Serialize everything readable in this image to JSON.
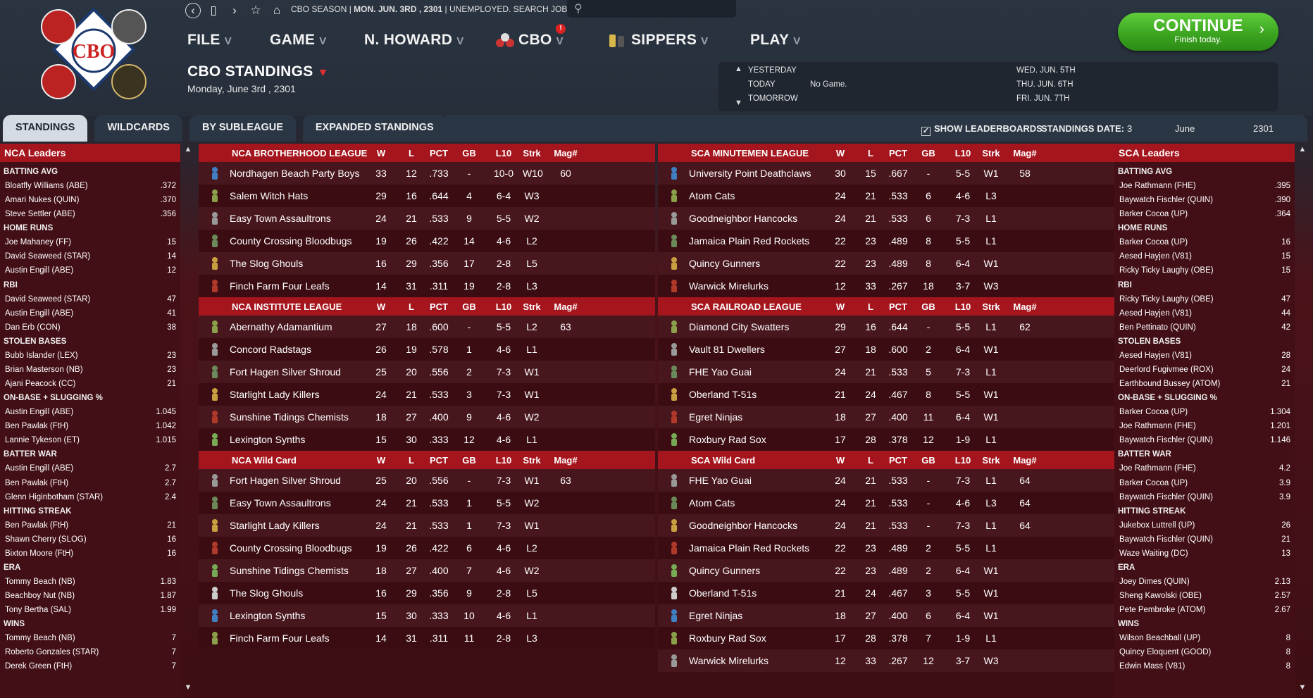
{
  "nav": {
    "status_season": "CBO SEASON",
    "status_date": "MON. JUN. 3RD , 2301",
    "status_job": "UNEMPLOYED. SEARCH JOBS...",
    "menus": [
      {
        "label": "FILE"
      },
      {
        "label": "GAME"
      },
      {
        "label": "N. HOWARD"
      },
      {
        "label": "CBO"
      },
      {
        "label": "SIPPERS"
      },
      {
        "label": "PLAY"
      }
    ],
    "cbo_badge": "!"
  },
  "page": {
    "title": "CBO STANDINGS",
    "date": "Monday, June 3rd , 2301"
  },
  "schedule": {
    "yesterday_label": "YESTERDAY",
    "today_label": "TODAY",
    "today_value": "No Game.",
    "tomorrow_label": "TOMORROW",
    "upcoming": [
      "WED. JUN. 5TH",
      "THU. JUN. 6TH",
      "FRI. JUN. 7TH"
    ]
  },
  "continue": {
    "label": "CONTINUE",
    "sub": "Finish today."
  },
  "tabs": [
    "STANDINGS",
    "WILDCARDS",
    "BY SUBLEAGUE",
    "EXPANDED STANDINGS"
  ],
  "options": {
    "show_leaderboards": "SHOW LEADERBOARDS",
    "standings_date_label": "STANDINGS DATE:",
    "day": "3",
    "month": "June",
    "year": "2301"
  },
  "columns": [
    "W",
    "L",
    "PCT",
    "GB",
    "L10",
    "Strk",
    "Mag#"
  ],
  "left_leaders": {
    "title": "NCA Leaders",
    "categories": [
      {
        "name": "BATTING AVG",
        "rows": [
          [
            "Bloatfly Williams (ABE)",
            ".372"
          ],
          [
            "Amari Nukes (QUIN)",
            ".370"
          ],
          [
            "Steve Settler (ABE)",
            ".356"
          ]
        ]
      },
      {
        "name": "HOME RUNS",
        "rows": [
          [
            "Joe Mahaney (FF)",
            "15"
          ],
          [
            "David Seaweed (STAR)",
            "14"
          ],
          [
            "Austin Engill (ABE)",
            "12"
          ]
        ]
      },
      {
        "name": "RBI",
        "rows": [
          [
            "David Seaweed (STAR)",
            "47"
          ],
          [
            "Austin Engill (ABE)",
            "41"
          ],
          [
            "Dan Erb (CON)",
            "38"
          ]
        ]
      },
      {
        "name": "STOLEN BASES",
        "rows": [
          [
            "Bubb Islander (LEX)",
            "23"
          ],
          [
            "Brian Masterson (NB)",
            "23"
          ],
          [
            "Ajani Peacock (CC)",
            "21"
          ]
        ]
      },
      {
        "name": "ON-BASE + SLUGGING %",
        "rows": [
          [
            "Austin Engill (ABE)",
            "1.045"
          ],
          [
            "Ben Pawlak (FtH)",
            "1.042"
          ],
          [
            "Lannie Tykeson (ET)",
            "1.015"
          ]
        ]
      },
      {
        "name": "BATTER WAR",
        "rows": [
          [
            "Austin Engill (ABE)",
            "2.7"
          ],
          [
            "Ben Pawlak (FtH)",
            "2.7"
          ],
          [
            "Glenn Higinbotham (STAR)",
            "2.4"
          ]
        ]
      },
      {
        "name": "HITTING STREAK",
        "rows": [
          [
            "Ben Pawlak (FtH)",
            "21"
          ],
          [
            "Shawn Cherry (SLOG)",
            "16"
          ],
          [
            "Bixton Moore (FtH)",
            "16"
          ]
        ]
      },
      {
        "name": "ERA",
        "rows": [
          [
            "Tommy Beach (NB)",
            "1.83"
          ],
          [
            "Beachboy Nut (NB)",
            "1.87"
          ],
          [
            "Tony Bertha (SAL)",
            "1.99"
          ]
        ]
      },
      {
        "name": "WINS",
        "rows": [
          [
            "Tommy Beach (NB)",
            "7"
          ],
          [
            "Roberto Gonzales (STAR)",
            "7"
          ],
          [
            "Derek Green (FtH)",
            "7"
          ]
        ]
      }
    ]
  },
  "right_leaders": {
    "title": "SCA Leaders",
    "categories": [
      {
        "name": "BATTING AVG",
        "rows": [
          [
            "Joe Rathmann (FHE)",
            ".395"
          ],
          [
            "Baywatch Fischler (QUIN)",
            ".390"
          ],
          [
            "Barker Cocoa (UP)",
            ".364"
          ]
        ]
      },
      {
        "name": "HOME RUNS",
        "rows": [
          [
            "Barker Cocoa (UP)",
            "16"
          ],
          [
            "Aesed Hayjen (V81)",
            "15"
          ],
          [
            "Ricky Ticky Laughy (OBE)",
            "15"
          ]
        ]
      },
      {
        "name": "RBI",
        "rows": [
          [
            "Ricky Ticky Laughy (OBE)",
            "47"
          ],
          [
            "Aesed Hayjen (V81)",
            "44"
          ],
          [
            "Ben Pettinato (QUIN)",
            "42"
          ]
        ]
      },
      {
        "name": "STOLEN BASES",
        "rows": [
          [
            "Aesed Hayjen (V81)",
            "28"
          ],
          [
            "Deerlord Fugivmee (ROX)",
            "24"
          ],
          [
            "Earthbound Bussey (ATOM)",
            "21"
          ]
        ]
      },
      {
        "name": "ON-BASE + SLUGGING %",
        "rows": [
          [
            "Barker Cocoa (UP)",
            "1.304"
          ],
          [
            "Joe Rathmann (FHE)",
            "1.201"
          ],
          [
            "Baywatch Fischler (QUIN)",
            "1.146"
          ]
        ]
      },
      {
        "name": "BATTER WAR",
        "rows": [
          [
            "Joe Rathmann (FHE)",
            "4.2"
          ],
          [
            "Barker Cocoa (UP)",
            "3.9"
          ],
          [
            "Baywatch Fischler (QUIN)",
            "3.9"
          ]
        ]
      },
      {
        "name": "HITTING STREAK",
        "rows": [
          [
            "Jukebox Luttrell (UP)",
            "26"
          ],
          [
            "Baywatch Fischler (QUIN)",
            "21"
          ],
          [
            "Waze Waiting (DC)",
            "13"
          ]
        ]
      },
      {
        "name": "ERA",
        "rows": [
          [
            "Joey Dimes (QUIN)",
            "2.13"
          ],
          [
            "Sheng Kawolski (OBE)",
            "2.57"
          ],
          [
            "Pete Pembroke (ATOM)",
            "2.67"
          ]
        ]
      },
      {
        "name": "WINS",
        "rows": [
          [
            "Wilson Beachball (UP)",
            "8"
          ],
          [
            "Quincy Eloquent (GOOD)",
            "8"
          ],
          [
            "Edwin Mass (V81)",
            "8"
          ]
        ]
      }
    ]
  },
  "nca_tables": [
    {
      "title": "NCA BROTHERHOOD LEAGUE",
      "teams": [
        [
          "Nordhagen Beach Party Boys",
          "33",
          "12",
          ".733",
          "-",
          "10-0",
          "W10",
          "60"
        ],
        [
          "Salem Witch Hats",
          "29",
          "16",
          ".644",
          "4",
          "6-4",
          "W3",
          ""
        ],
        [
          "Easy Town Assaultrons",
          "24",
          "21",
          ".533",
          "9",
          "5-5",
          "W2",
          ""
        ],
        [
          "County Crossing Bloodbugs",
          "19",
          "26",
          ".422",
          "14",
          "4-6",
          "L2",
          ""
        ],
        [
          "The Slog Ghouls",
          "16",
          "29",
          ".356",
          "17",
          "2-8",
          "L5",
          ""
        ],
        [
          "Finch Farm Four Leafs",
          "14",
          "31",
          ".311",
          "19",
          "2-8",
          "L3",
          ""
        ]
      ]
    },
    {
      "title": "NCA INSTITUTE LEAGUE",
      "teams": [
        [
          "Abernathy Adamantium",
          "27",
          "18",
          ".600",
          "-",
          "5-5",
          "L2",
          "63"
        ],
        [
          "Concord Radstags",
          "26",
          "19",
          ".578",
          "1",
          "4-6",
          "L1",
          ""
        ],
        [
          "Fort Hagen Silver Shroud",
          "25",
          "20",
          ".556",
          "2",
          "7-3",
          "W1",
          ""
        ],
        [
          "Starlight Lady Killers",
          "24",
          "21",
          ".533",
          "3",
          "7-3",
          "W1",
          ""
        ],
        [
          "Sunshine Tidings Chemists",
          "18",
          "27",
          ".400",
          "9",
          "4-6",
          "W2",
          ""
        ],
        [
          "Lexington Synths",
          "15",
          "30",
          ".333",
          "12",
          "4-6",
          "L1",
          ""
        ]
      ]
    },
    {
      "title": "NCA  Wild Card",
      "teams": [
        [
          "Fort Hagen Silver Shroud",
          "25",
          "20",
          ".556",
          "-",
          "7-3",
          "W1",
          "63"
        ],
        [
          "Easy Town Assaultrons",
          "24",
          "21",
          ".533",
          "1",
          "5-5",
          "W2",
          ""
        ],
        [
          "Starlight Lady Killers",
          "24",
          "21",
          ".533",
          "1",
          "7-3",
          "W1",
          ""
        ],
        [
          "County Crossing Bloodbugs",
          "19",
          "26",
          ".422",
          "6",
          "4-6",
          "L2",
          ""
        ],
        [
          "Sunshine Tidings Chemists",
          "18",
          "27",
          ".400",
          "7",
          "4-6",
          "W2",
          ""
        ],
        [
          "The Slog Ghouls",
          "16",
          "29",
          ".356",
          "9",
          "2-8",
          "L5",
          ""
        ],
        [
          "Lexington Synths",
          "15",
          "30",
          ".333",
          "10",
          "4-6",
          "L1",
          ""
        ],
        [
          "Finch Farm Four Leafs",
          "14",
          "31",
          ".311",
          "11",
          "2-8",
          "L3",
          ""
        ]
      ]
    }
  ],
  "sca_tables": [
    {
      "title": "SCA MINUTEMEN LEAGUE",
      "teams": [
        [
          "University Point Deathclaws",
          "30",
          "15",
          ".667",
          "-",
          "5-5",
          "W1",
          "58"
        ],
        [
          "Atom Cats",
          "24",
          "21",
          ".533",
          "6",
          "4-6",
          "L3",
          ""
        ],
        [
          "Goodneighbor Hancocks",
          "24",
          "21",
          ".533",
          "6",
          "7-3",
          "L1",
          ""
        ],
        [
          "Jamaica Plain Red Rockets",
          "22",
          "23",
          ".489",
          "8",
          "5-5",
          "L1",
          ""
        ],
        [
          "Quincy Gunners",
          "22",
          "23",
          ".489",
          "8",
          "6-4",
          "W1",
          ""
        ],
        [
          "Warwick Mirelurks",
          "12",
          "33",
          ".267",
          "18",
          "3-7",
          "W3",
          ""
        ]
      ]
    },
    {
      "title": "SCA RAILROAD LEAGUE",
      "teams": [
        [
          "Diamond City Swatters",
          "29",
          "16",
          ".644",
          "-",
          "5-5",
          "L1",
          "62"
        ],
        [
          "Vault 81 Dwellers",
          "27",
          "18",
          ".600",
          "2",
          "6-4",
          "W1",
          ""
        ],
        [
          "FHE Yao Guai",
          "24",
          "21",
          ".533",
          "5",
          "7-3",
          "L1",
          ""
        ],
        [
          "Oberland T-51s",
          "21",
          "24",
          ".467",
          "8",
          "5-5",
          "W1",
          ""
        ],
        [
          "Egret Ninjas",
          "18",
          "27",
          ".400",
          "11",
          "6-4",
          "W1",
          ""
        ],
        [
          "Roxbury Rad Sox",
          "17",
          "28",
          ".378",
          "12",
          "1-9",
          "L1",
          ""
        ]
      ]
    },
    {
      "title": "SCA  Wild Card",
      "teams": [
        [
          "FHE Yao Guai",
          "24",
          "21",
          ".533",
          "-",
          "7-3",
          "L1",
          "64"
        ],
        [
          "Atom Cats",
          "24",
          "21",
          ".533",
          "-",
          "4-6",
          "L3",
          "64"
        ],
        [
          "Goodneighbor Hancocks",
          "24",
          "21",
          ".533",
          "-",
          "7-3",
          "L1",
          "64"
        ],
        [
          "Jamaica Plain Red Rockets",
          "22",
          "23",
          ".489",
          "2",
          "5-5",
          "L1",
          ""
        ],
        [
          "Quincy Gunners",
          "22",
          "23",
          ".489",
          "2",
          "6-4",
          "W1",
          ""
        ],
        [
          "Oberland T-51s",
          "21",
          "24",
          ".467",
          "3",
          "5-5",
          "W1",
          ""
        ],
        [
          "Egret Ninjas",
          "18",
          "27",
          ".400",
          "6",
          "6-4",
          "W1",
          ""
        ],
        [
          "Roxbury Rad Sox",
          "17",
          "28",
          ".378",
          "7",
          "1-9",
          "L1",
          ""
        ],
        [
          "Warwick Mirelurks",
          "12",
          "33",
          ".267",
          "12",
          "3-7",
          "W3",
          ""
        ]
      ]
    }
  ],
  "colors": {
    "accent_red": "#a5151d",
    "continue_green": "#3aa21f",
    "panel_dark": "#420f16",
    "topbar": "#262e3a"
  }
}
